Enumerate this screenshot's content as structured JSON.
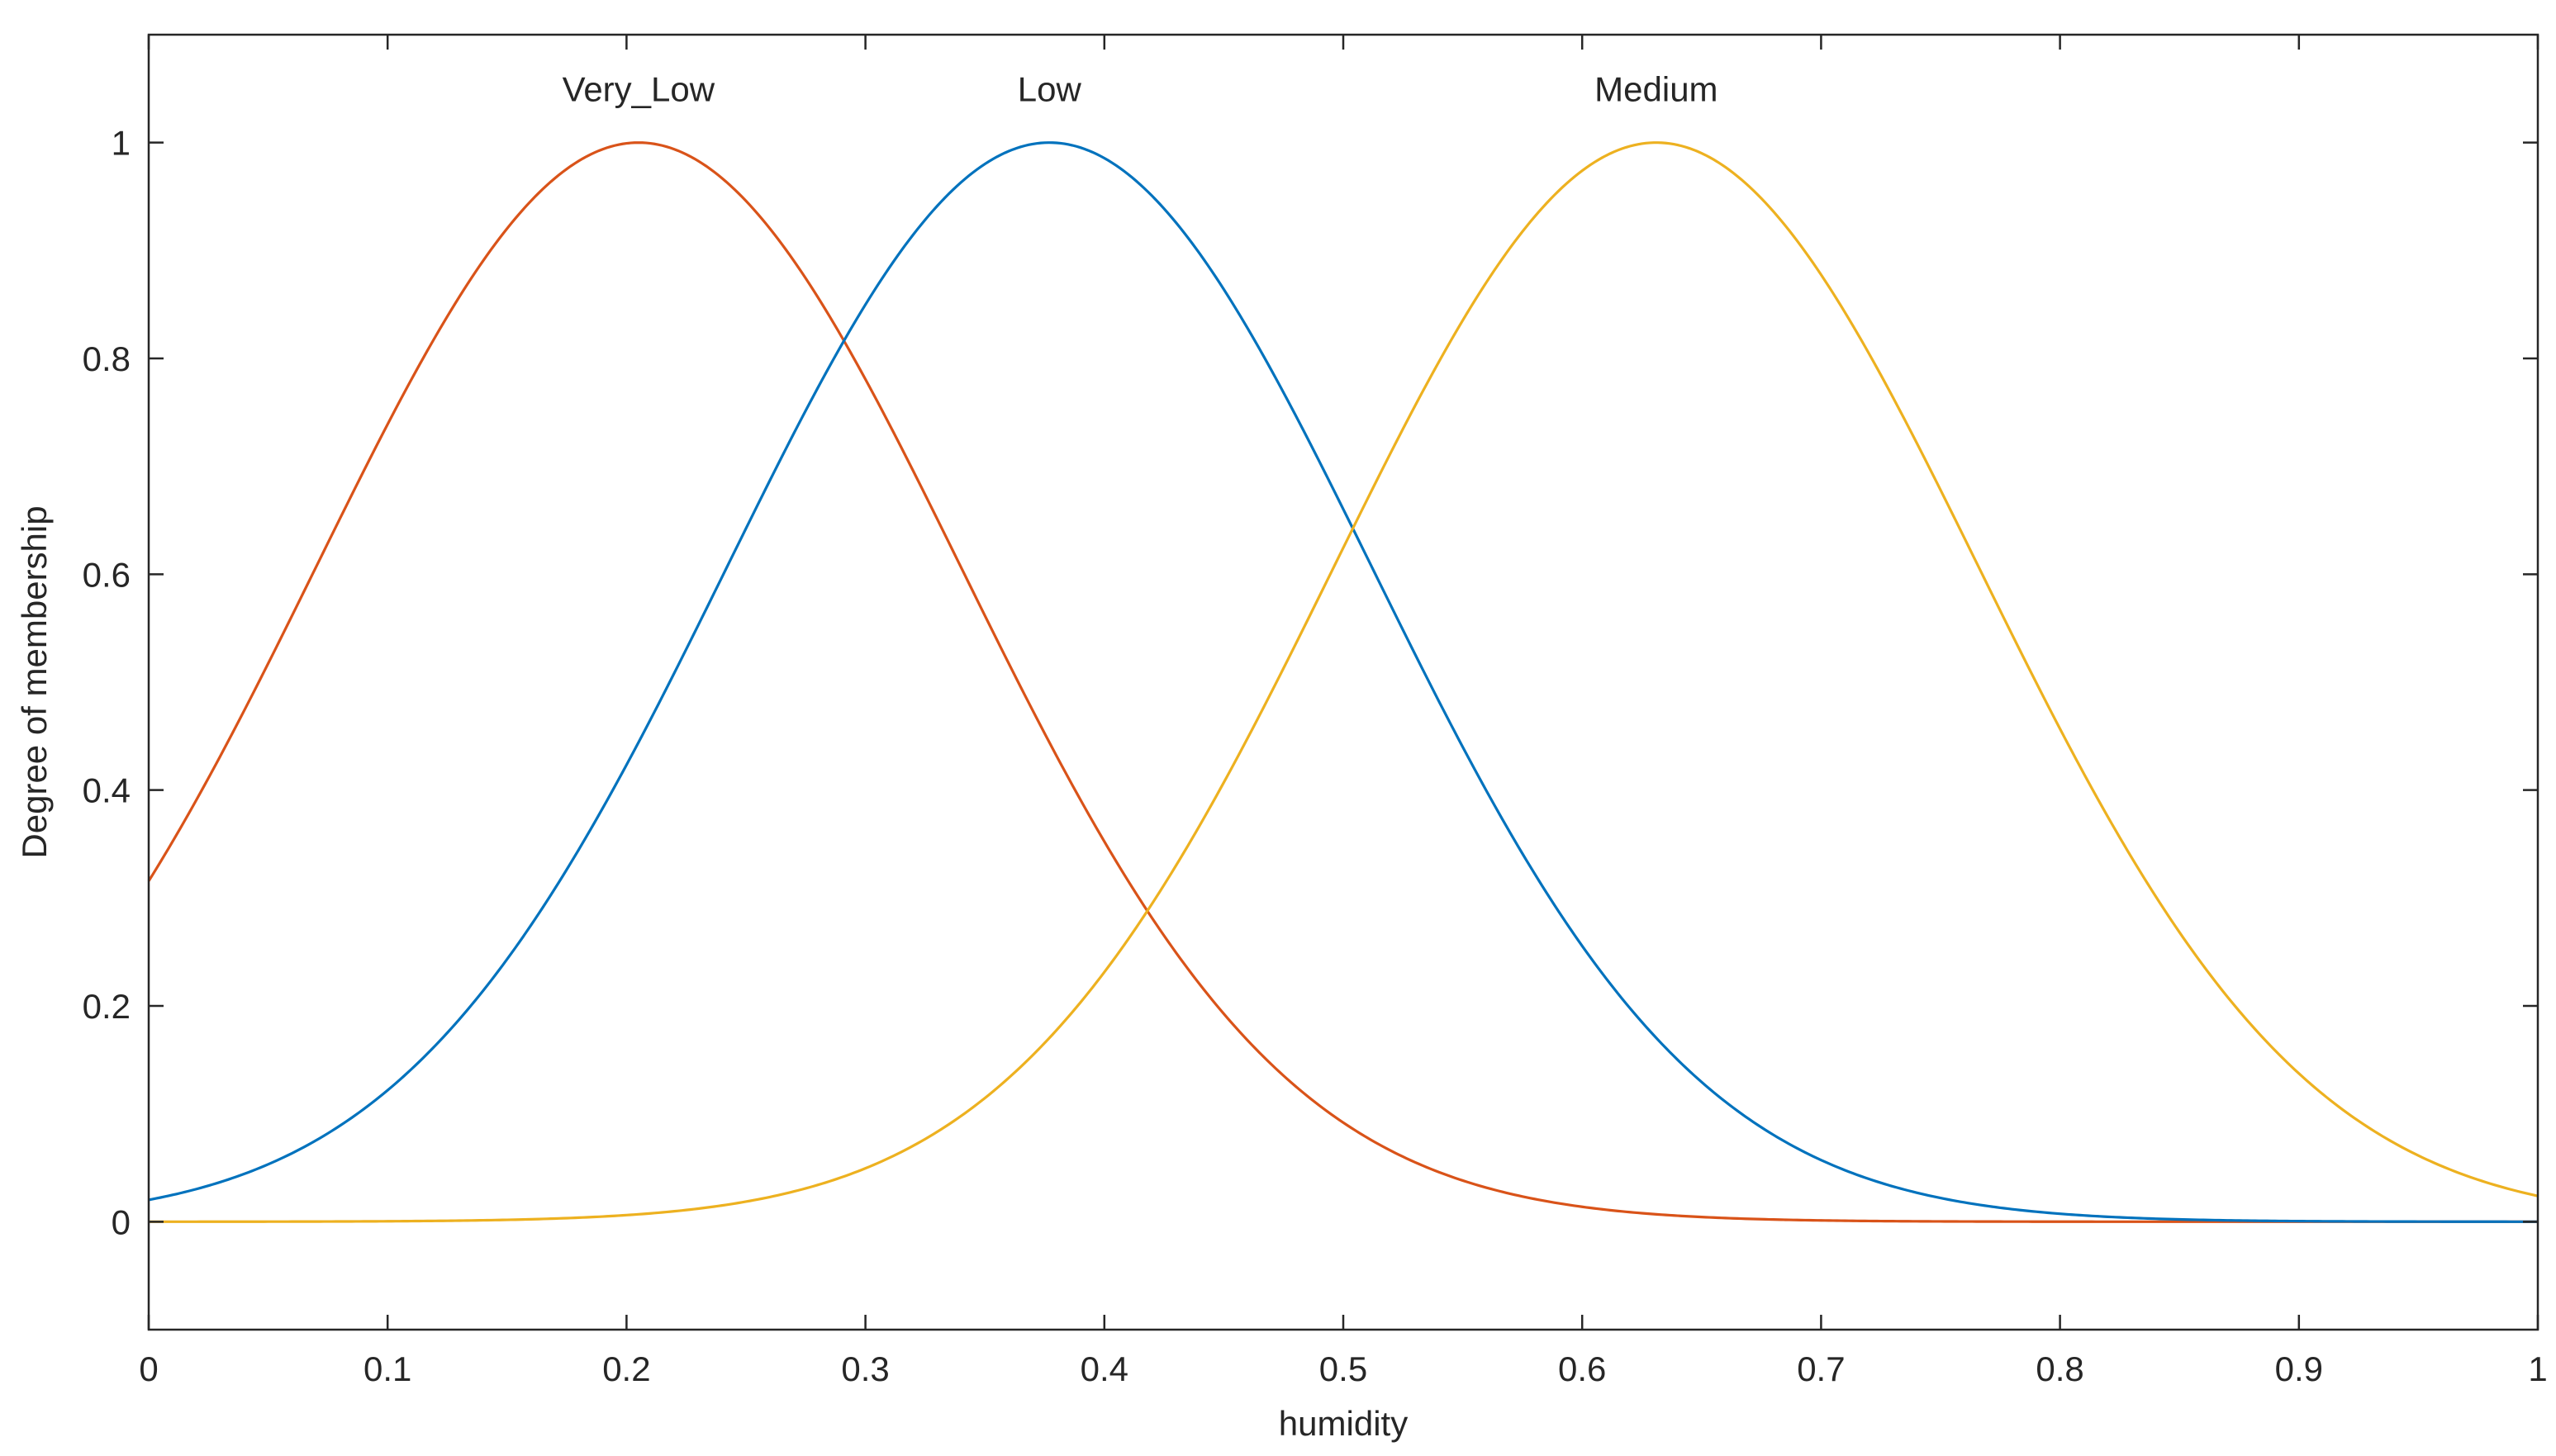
{
  "chart_data": {
    "type": "line",
    "title": "",
    "xlabel": "humidity",
    "ylabel": "Degree of membership",
    "xlim": [
      0,
      1
    ],
    "ylim": [
      -0.1,
      1.1
    ],
    "xticks": [
      0,
      0.1,
      0.2,
      0.3,
      0.4,
      0.5,
      0.6,
      0.7,
      0.8,
      0.9,
      1
    ],
    "xtick_labels": [
      "0",
      "0.1",
      "0.2",
      "0.3",
      "0.4",
      "0.5",
      "0.6",
      "0.7",
      "0.8",
      "0.9",
      "1"
    ],
    "yticks": [
      0,
      0.2,
      0.4,
      0.6,
      0.8,
      1
    ],
    "ytick_labels": [
      "0",
      "0.2",
      "0.4",
      "0.6",
      "0.8",
      "1"
    ],
    "grid": false,
    "legend": "none",
    "series": [
      {
        "name": "Very_Low",
        "function": "gaussian",
        "center": 0.205,
        "sigma": 0.135,
        "color": "#D95319",
        "label_x": 0.205
      },
      {
        "name": "Low",
        "function": "gaussian",
        "center": 0.377,
        "sigma": 0.135,
        "color": "#0072BD",
        "label_x": 0.377
      },
      {
        "name": "Medium",
        "function": "gaussian",
        "center": 0.631,
        "sigma": 0.135,
        "color": "#EDB120",
        "label_x": 0.631
      }
    ]
  }
}
